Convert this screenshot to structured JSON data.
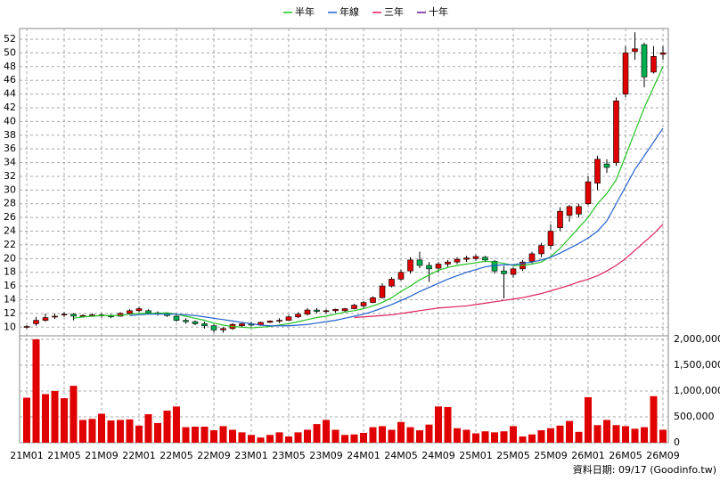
{
  "chart_data": [
    {
      "type": "candlestick",
      "categories": [
        "21M01",
        null,
        null,
        null,
        "21M05",
        null,
        null,
        null,
        "21M09",
        null,
        null,
        null,
        "22M01",
        null,
        null,
        null,
        "22M05",
        null,
        null,
        null,
        "22M09",
        null,
        null,
        null,
        "23M01",
        null,
        null,
        null,
        "23M05",
        null,
        null,
        null,
        "23M09",
        null,
        null,
        null,
        "24M01",
        null,
        null,
        null,
        "24M05",
        null,
        null,
        null,
        "24M09",
        null,
        null,
        null,
        "25M01",
        null,
        null,
        null,
        "25M05",
        null,
        null,
        null,
        "25M09",
        null,
        null,
        null,
        "26M01",
        null,
        null,
        null,
        "26M05",
        null,
        null,
        null,
        "26M09"
      ],
      "open": [
        10.0,
        10.5,
        11.0,
        11.5,
        11.8,
        11.9,
        11.6,
        11.7,
        11.8,
        11.7,
        11.6,
        12.0,
        12.4,
        12.4,
        12.1,
        12.0,
        11.6,
        11.0,
        10.8,
        10.5,
        10.2,
        9.6,
        9.8,
        10.2,
        10.5,
        10.3,
        10.7,
        10.9,
        11.0,
        11.5,
        11.9,
        12.5,
        12.3,
        12.4,
        12.4,
        12.7,
        13.1,
        13.6,
        14.3,
        16.0,
        17.0,
        18.2,
        19.8,
        19.0,
        18.6,
        19.2,
        19.5,
        19.9,
        20.0,
        20.2,
        19.6,
        18.2,
        17.7,
        18.5,
        19.6,
        20.7,
        21.9,
        24.5,
        26.3,
        26.5,
        28.0,
        31.0,
        33.8,
        34.0,
        44.0,
        50.2,
        51.2,
        47.2,
        49.8
      ],
      "high": [
        10.3,
        11.5,
        12.0,
        12.0,
        12.2,
        12.0,
        11.9,
        12.0,
        12.0,
        11.9,
        12.2,
        12.6,
        13.0,
        12.6,
        12.3,
        12.1,
        11.8,
        11.3,
        11.0,
        10.8,
        10.4,
        10.0,
        10.6,
        10.6,
        10.8,
        10.8,
        11.0,
        11.3,
        11.8,
        12.2,
        12.8,
        12.8,
        12.6,
        12.7,
        12.8,
        13.4,
        13.8,
        14.5,
        16.4,
        17.3,
        18.4,
        20.2,
        21.0,
        19.5,
        19.5,
        19.8,
        20.2,
        20.4,
        20.6,
        20.4,
        19.8,
        18.9,
        18.8,
        19.8,
        21.0,
        22.3,
        25.0,
        27.5,
        27.8,
        28.0,
        32.0,
        35.0,
        34.5,
        43.5,
        51.0,
        53.0,
        51.5,
        51.0,
        51.0
      ],
      "low": [
        9.8,
        10.2,
        10.8,
        11.2,
        11.5,
        11.0,
        11.4,
        11.5,
        11.4,
        11.3,
        11.5,
        11.8,
        12.2,
        12.0,
        11.7,
        11.5,
        10.8,
        10.5,
        10.3,
        9.8,
        9.2,
        9.2,
        9.6,
        10.0,
        10.1,
        10.2,
        10.6,
        10.6,
        10.9,
        11.3,
        11.7,
        12.0,
        12.0,
        12.1,
        12.2,
        12.6,
        12.8,
        13.5,
        14.2,
        15.8,
        16.8,
        17.8,
        18.6,
        16.6,
        18.0,
        18.8,
        19.2,
        19.5,
        19.7,
        19.5,
        17.8,
        14.2,
        17.2,
        18.2,
        19.3,
        20.2,
        21.4,
        24.0,
        25.4,
        26.0,
        27.8,
        30.0,
        32.5,
        33.5,
        43.5,
        49.0,
        45.0,
        47.0,
        49.0
      ],
      "close": [
        10.1,
        11.0,
        11.4,
        11.6,
        11.9,
        11.6,
        11.7,
        11.8,
        11.7,
        11.5,
        12.0,
        12.4,
        12.7,
        12.1,
        12.0,
        11.7,
        11.0,
        10.8,
        10.5,
        10.2,
        9.6,
        9.8,
        10.4,
        10.5,
        10.3,
        10.7,
        10.9,
        11.0,
        11.5,
        11.9,
        12.5,
        12.3,
        12.4,
        12.6,
        12.7,
        13.2,
        13.6,
        14.3,
        16.0,
        17.0,
        18.0,
        19.8,
        19.0,
        18.5,
        19.2,
        19.5,
        19.9,
        20.1,
        20.3,
        19.8,
        18.2,
        17.8,
        18.5,
        19.5,
        20.7,
        21.9,
        24.0,
        26.9,
        27.6,
        27.6,
        31.2,
        34.5,
        33.3,
        43.0,
        50.0,
        50.6,
        46.5,
        49.5,
        50.0
      ],
      "up_color": "#e00000",
      "down_color": "#00b050",
      "series": [
        {
          "name": "半年",
          "color": "#22c422",
          "values": [
            null,
            null,
            null,
            null,
            null,
            11.3,
            11.5,
            11.6,
            11.7,
            11.7,
            11.7,
            11.9,
            12.0,
            12.0,
            12.0,
            12.1,
            11.9,
            11.6,
            11.3,
            11.0,
            10.6,
            10.3,
            10.1,
            10.0,
            9.9,
            10.0,
            10.1,
            10.3,
            10.5,
            10.8,
            11.1,
            11.4,
            11.6,
            11.9,
            12.2,
            12.4,
            12.7,
            13.1,
            13.6,
            14.3,
            15.2,
            16.0,
            16.9,
            17.6,
            18.3,
            18.7,
            19.0,
            19.2,
            19.4,
            19.6,
            19.5,
            19.3,
            19.0,
            19.0,
            19.2,
            19.5,
            20.3,
            21.5,
            23.0,
            24.5,
            26.0,
            28.0,
            29.5,
            31.5,
            35.0,
            38.5,
            42.0,
            45.0,
            48.0
          ]
        },
        {
          "name": "年線",
          "color": "#2060d0",
          "values": [
            null,
            null,
            null,
            null,
            null,
            null,
            null,
            null,
            null,
            null,
            null,
            11.7,
            11.8,
            11.9,
            11.9,
            11.9,
            11.9,
            11.8,
            11.7,
            11.5,
            11.3,
            11.1,
            10.9,
            10.7,
            10.5,
            10.3,
            10.2,
            10.2,
            10.2,
            10.3,
            10.4,
            10.6,
            10.8,
            11.0,
            11.3,
            11.6,
            11.9,
            12.3,
            12.8,
            13.3,
            13.9,
            14.5,
            15.2,
            15.8,
            16.4,
            17.0,
            17.5,
            18.0,
            18.4,
            18.8,
            19.0,
            19.1,
            19.1,
            19.3,
            19.5,
            19.8,
            20.2,
            20.8,
            21.5,
            22.2,
            23.0,
            24.0,
            25.5,
            28.0,
            30.5,
            33.0,
            35.0,
            37.0,
            39.0
          ]
        },
        {
          "name": "三年",
          "color": "#e0205a",
          "values": [
            null,
            null,
            null,
            null,
            null,
            null,
            null,
            null,
            null,
            null,
            null,
            null,
            null,
            null,
            null,
            null,
            null,
            null,
            null,
            null,
            null,
            null,
            null,
            null,
            null,
            null,
            null,
            null,
            null,
            null,
            null,
            null,
            null,
            null,
            null,
            11.4,
            11.5,
            11.6,
            11.7,
            11.8,
            12.0,
            12.2,
            12.4,
            12.6,
            12.8,
            12.9,
            13.0,
            13.1,
            13.3,
            13.5,
            13.7,
            13.9,
            14.1,
            14.3,
            14.6,
            14.9,
            15.3,
            15.7,
            16.1,
            16.6,
            17.0,
            17.5,
            18.2,
            19.0,
            20.0,
            21.2,
            22.4,
            23.6,
            25.0
          ]
        },
        {
          "name": "十年",
          "color": "#6a1a9a",
          "values": [
            null,
            null,
            null,
            null,
            null,
            null,
            null,
            null,
            null,
            null,
            null,
            null,
            null,
            null,
            null,
            null,
            null,
            null,
            null,
            null,
            null,
            null,
            null,
            null,
            null,
            null,
            null,
            null,
            null,
            null,
            null,
            null,
            null,
            null,
            null,
            null,
            null,
            null,
            null,
            null,
            null,
            null,
            null,
            null,
            null,
            null,
            null,
            null,
            null,
            null,
            null,
            null,
            null,
            null,
            null,
            null,
            null,
            null,
            null,
            null,
            null,
            null,
            null,
            null,
            null,
            null,
            null,
            null,
            null
          ]
        }
      ],
      "ylim": [
        9,
        53.3
      ],
      "yticks": [
        10,
        12,
        14,
        16,
        18,
        20,
        22,
        24,
        26,
        28,
        30,
        32,
        34,
        36,
        38,
        40,
        42,
        44,
        46,
        48,
        50,
        52
      ],
      "grid": true
    },
    {
      "type": "bar",
      "color": "#e00000",
      "values": [
        870000,
        2000000,
        940000,
        1000000,
        860000,
        1100000,
        440000,
        460000,
        560000,
        430000,
        440000,
        450000,
        330000,
        550000,
        380000,
        620000,
        700000,
        300000,
        310000,
        310000,
        240000,
        320000,
        250000,
        200000,
        150000,
        100000,
        150000,
        200000,
        120000,
        200000,
        250000,
        360000,
        440000,
        250000,
        150000,
        160000,
        190000,
        300000,
        320000,
        250000,
        400000,
        300000,
        240000,
        350000,
        700000,
        690000,
        280000,
        250000,
        180000,
        220000,
        200000,
        220000,
        320000,
        120000,
        160000,
        240000,
        280000,
        330000,
        420000,
        210000,
        880000,
        340000,
        440000,
        340000,
        320000,
        270000,
        300000,
        900000,
        250000
      ],
      "ylim": [
        0,
        2050000
      ],
      "yticks": [
        {
          "value": 0,
          "label": "0"
        },
        {
          "value": 500000,
          "label": "500,000"
        },
        {
          "value": 1000000,
          "label": "1,000,000"
        },
        {
          "value": 1500000,
          "label": "1,500,000"
        },
        {
          "value": 2000000,
          "label": "2,000,000"
        }
      ],
      "source": "資料日期: 09/17 (Goodinfo.tw)"
    }
  ]
}
